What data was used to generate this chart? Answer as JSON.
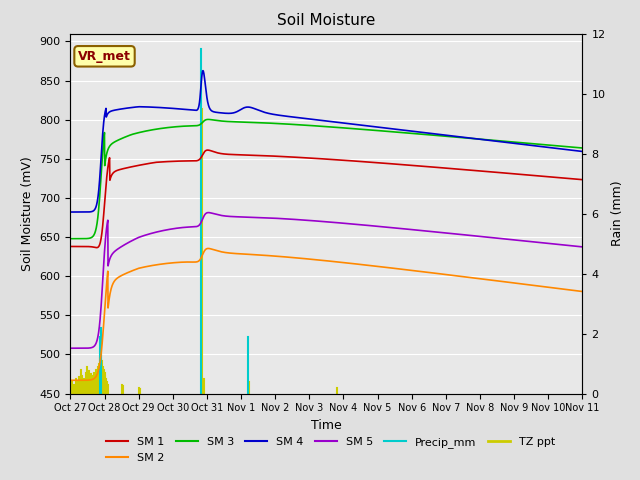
{
  "title": "Soil Moisture",
  "xlabel": "Time",
  "ylabel_left": "Soil Moisture (mV)",
  "ylabel_right": "Rain (mm)",
  "ylim_left": [
    450,
    910
  ],
  "ylim_right": [
    0,
    12
  ],
  "title_fontsize": 11,
  "label_box_text": "VR_met",
  "x_tick_labels": [
    "Oct 27",
    "Oct 28",
    "Oct 29",
    "Oct 30",
    "Oct 31",
    "Nov 1",
    "Nov 2",
    "Nov 3",
    "Nov 4",
    "Nov 5",
    "Nov 6",
    "Nov 7",
    "Nov 8",
    "Nov 9",
    "Nov 10",
    "Nov 11"
  ],
  "series_colors": {
    "SM1": "#cc0000",
    "SM2": "#ff8800",
    "SM3": "#00bb00",
    "SM4": "#0000cc",
    "SM5": "#9900cc",
    "Precip": "#00cccc",
    "TZ": "#cccc00"
  },
  "bg_color": "#e0e0e0",
  "plot_bg_color": "#e8e8e8"
}
